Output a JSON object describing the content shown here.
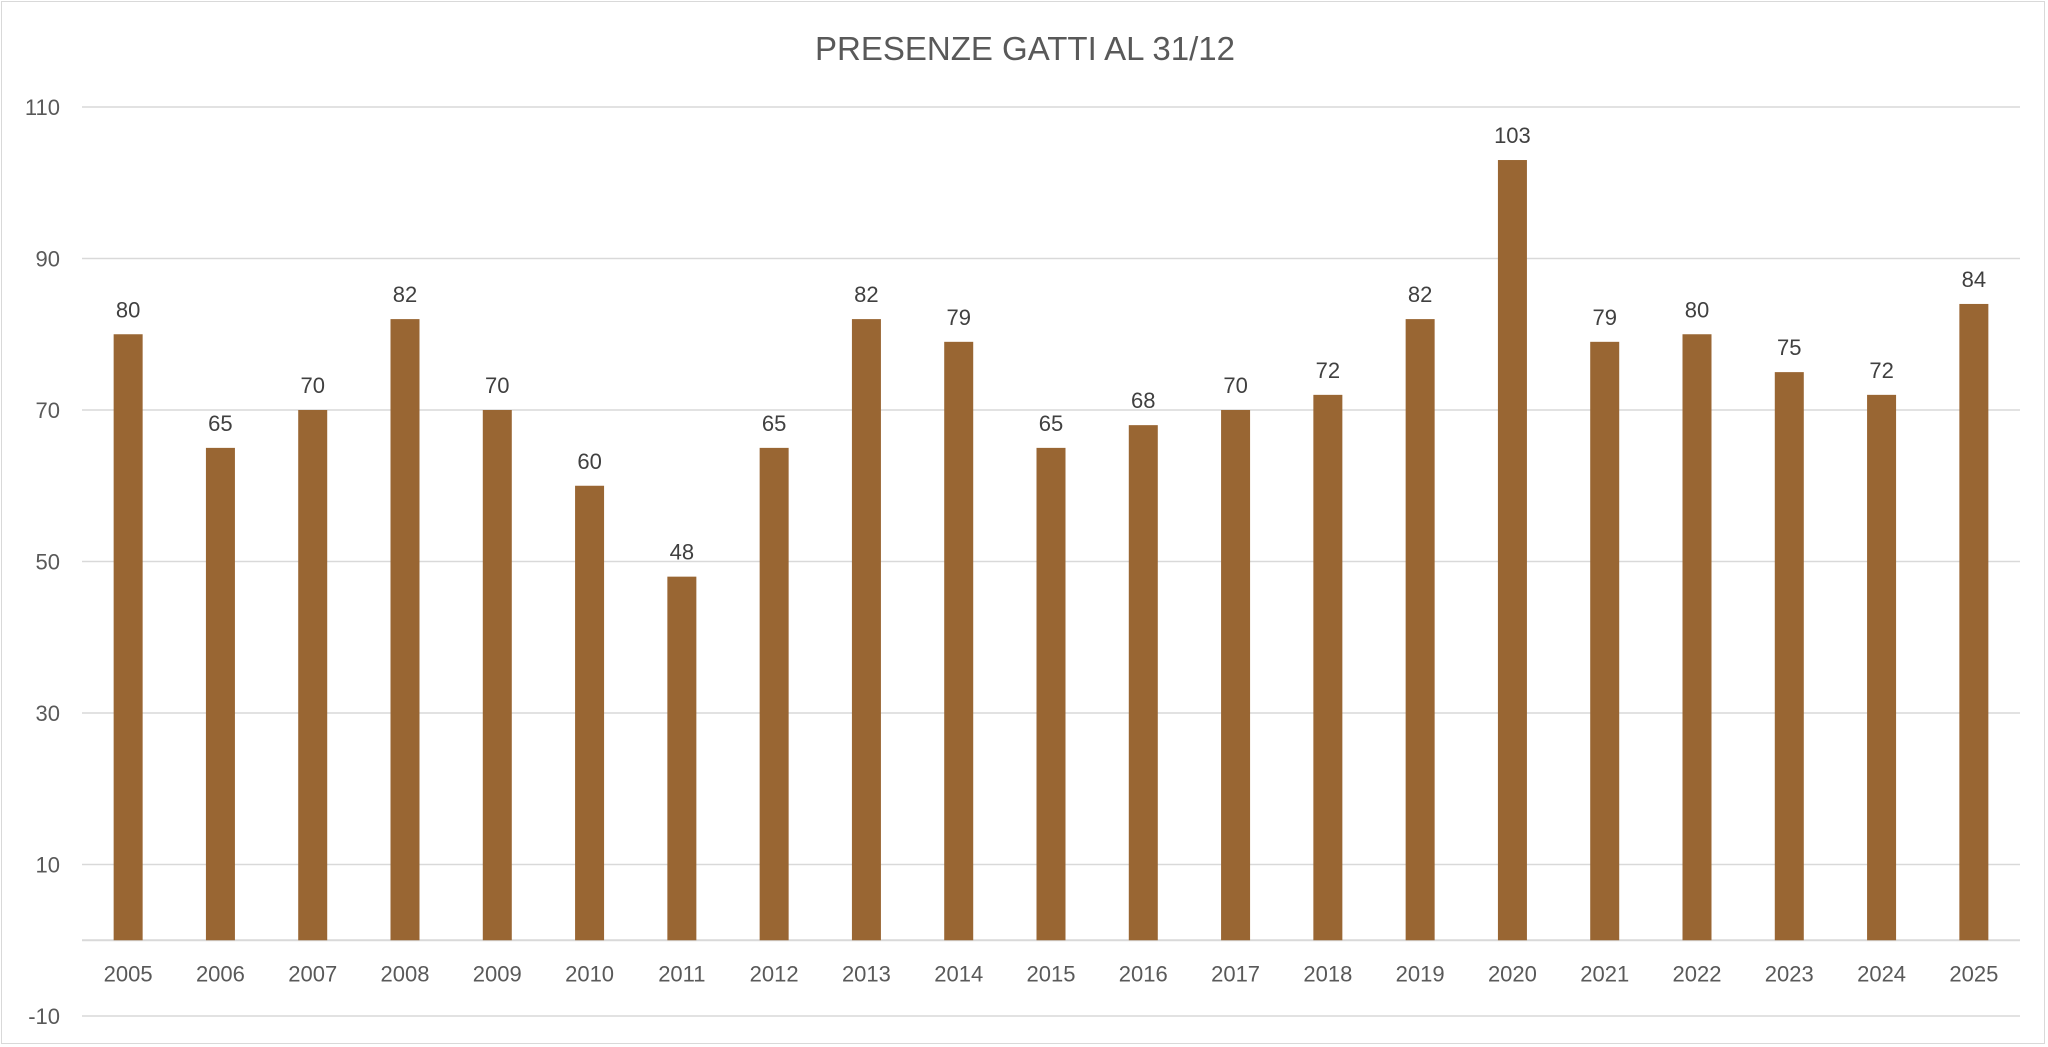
{
  "chart_data": {
    "type": "bar",
    "title": "PRESENZE GATTI AL 31/12",
    "xlabel": "",
    "ylabel": "",
    "ylim": [
      -10,
      110
    ],
    "yticks": [
      -10,
      10,
      30,
      50,
      70,
      90,
      110
    ],
    "grid": true,
    "legend": "none",
    "bar_color": "#996633",
    "categories": [
      "2005",
      "2006",
      "2007",
      "2008",
      "2009",
      "2010",
      "2011",
      "2012",
      "2013",
      "2014",
      "2015",
      "2016",
      "2017",
      "2018",
      "2019",
      "2020",
      "2021",
      "2022",
      "2023",
      "2024",
      "2025"
    ],
    "series": [
      {
        "name": "Presenze",
        "values": [
          80,
          65,
          70,
          82,
          70,
          60,
          48,
          65,
          82,
          79,
          65,
          68,
          70,
          72,
          82,
          103,
          79,
          80,
          75,
          72,
          84
        ]
      }
    ]
  }
}
